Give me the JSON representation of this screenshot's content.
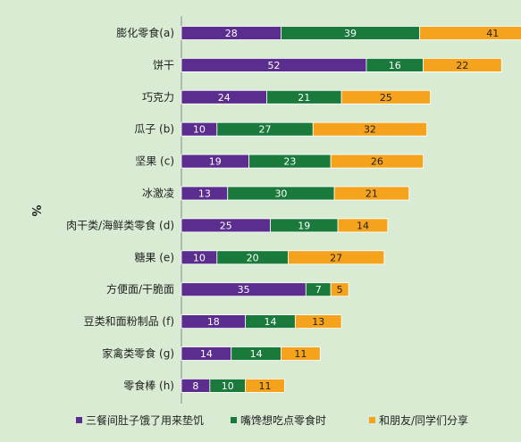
{
  "chart_data": {
    "type": "bar",
    "orientation": "horizontal",
    "stacked": true,
    "title": "",
    "xlabel": "",
    "ylabel": "%",
    "categories": [
      "膨化零食(a)",
      "饼干",
      "巧克力",
      "瓜子 (b)",
      "坚果 (c)",
      "冰激凌",
      "肉干类/海鲜类零食 (d)",
      "糖果 (e)",
      "方便面/干脆面",
      "豆类和面粉制品 (f)",
      "家禽类零食 (g)",
      "零食棒 (h)"
    ],
    "series": [
      {
        "name": "三餐间肚子饿了用来垫饥",
        "color": "#5b2d8e",
        "values": [
          28,
          52,
          24,
          10,
          19,
          13,
          25,
          10,
          35,
          18,
          14,
          8
        ]
      },
      {
        "name": "嘴馋想吃点零食时",
        "color": "#1a7a3c",
        "values": [
          39,
          16,
          21,
          27,
          23,
          30,
          19,
          20,
          7,
          14,
          14,
          10
        ]
      },
      {
        "name": "和朋友/同学们分享",
        "color": "#f5a21c",
        "values": [
          41,
          22,
          25,
          32,
          26,
          21,
          14,
          27,
          5,
          13,
          11,
          11
        ]
      }
    ],
    "grid": false,
    "legend_position": "bottom"
  }
}
